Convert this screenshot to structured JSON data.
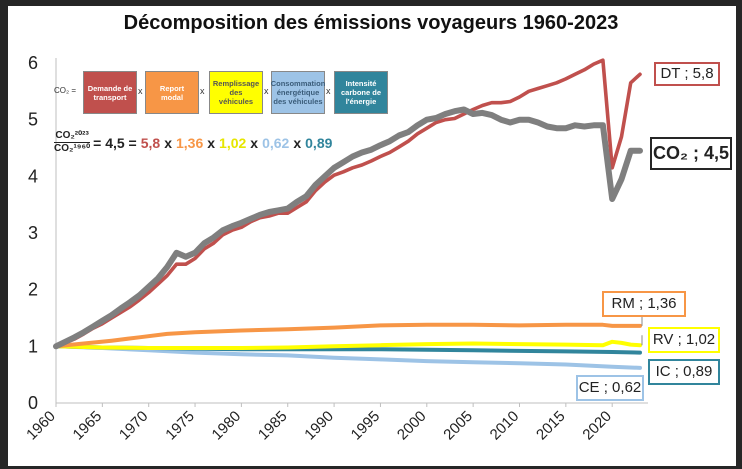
{
  "chart_data": {
    "type": "line",
    "title": "Décomposition des émissions voyageurs 1960-2023",
    "xlabel": "",
    "ylabel": "",
    "xlim": [
      1960,
      2023
    ],
    "ylim": [
      0,
      6
    ],
    "xticks": [
      1960,
      1965,
      1970,
      1975,
      1980,
      1985,
      1990,
      1995,
      2000,
      2005,
      2010,
      2015,
      2020
    ],
    "yticks": [
      0,
      1,
      2,
      3,
      4,
      5,
      6
    ],
    "grid": false,
    "series": [
      {
        "key": "DT",
        "color": "#c0504d",
        "points": [
          [
            1960,
            1.0
          ],
          [
            1961,
            1.06
          ],
          [
            1962,
            1.13
          ],
          [
            1963,
            1.22
          ],
          [
            1964,
            1.32
          ],
          [
            1965,
            1.4
          ],
          [
            1966,
            1.5
          ],
          [
            1967,
            1.6
          ],
          [
            1968,
            1.7
          ],
          [
            1969,
            1.82
          ],
          [
            1970,
            1.95
          ],
          [
            1971,
            2.1
          ],
          [
            1972,
            2.25
          ],
          [
            1973,
            2.45
          ],
          [
            1974,
            2.45
          ],
          [
            1975,
            2.55
          ],
          [
            1976,
            2.72
          ],
          [
            1977,
            2.82
          ],
          [
            1978,
            2.97
          ],
          [
            1979,
            3.05
          ],
          [
            1980,
            3.1
          ],
          [
            1981,
            3.2
          ],
          [
            1982,
            3.27
          ],
          [
            1983,
            3.3
          ],
          [
            1984,
            3.35
          ],
          [
            1985,
            3.35
          ],
          [
            1986,
            3.45
          ],
          [
            1987,
            3.55
          ],
          [
            1988,
            3.75
          ],
          [
            1989,
            3.9
          ],
          [
            1990,
            4.02
          ],
          [
            1991,
            4.08
          ],
          [
            1992,
            4.15
          ],
          [
            1993,
            4.2
          ],
          [
            1994,
            4.27
          ],
          [
            1995,
            4.35
          ],
          [
            1996,
            4.42
          ],
          [
            1997,
            4.52
          ],
          [
            1998,
            4.62
          ],
          [
            1999,
            4.75
          ],
          [
            2000,
            4.85
          ],
          [
            2001,
            4.95
          ],
          [
            2002,
            5.0
          ],
          [
            2003,
            5.02
          ],
          [
            2004,
            5.1
          ],
          [
            2005,
            5.18
          ],
          [
            2006,
            5.25
          ],
          [
            2007,
            5.3
          ],
          [
            2008,
            5.3
          ],
          [
            2009,
            5.32
          ],
          [
            2010,
            5.4
          ],
          [
            2011,
            5.5
          ],
          [
            2012,
            5.55
          ],
          [
            2013,
            5.6
          ],
          [
            2014,
            5.65
          ],
          [
            2015,
            5.72
          ],
          [
            2016,
            5.8
          ],
          [
            2017,
            5.88
          ],
          [
            2018,
            5.98
          ],
          [
            2019,
            6.05
          ],
          [
            2020,
            4.15
          ],
          [
            2021,
            4.7
          ],
          [
            2022,
            5.65
          ],
          [
            2023,
            5.8
          ]
        ]
      },
      {
        "key": "CO2",
        "color": "#7f7f7f",
        "points": [
          [
            1960,
            1.0
          ],
          [
            1961,
            1.08
          ],
          [
            1962,
            1.16
          ],
          [
            1963,
            1.25
          ],
          [
            1964,
            1.35
          ],
          [
            1965,
            1.45
          ],
          [
            1966,
            1.55
          ],
          [
            1967,
            1.67
          ],
          [
            1968,
            1.78
          ],
          [
            1969,
            1.9
          ],
          [
            1970,
            2.05
          ],
          [
            1971,
            2.2
          ],
          [
            1972,
            2.4
          ],
          [
            1973,
            2.65
          ],
          [
            1974,
            2.58
          ],
          [
            1975,
            2.65
          ],
          [
            1976,
            2.82
          ],
          [
            1977,
            2.92
          ],
          [
            1978,
            3.05
          ],
          [
            1979,
            3.12
          ],
          [
            1980,
            3.18
          ],
          [
            1981,
            3.25
          ],
          [
            1982,
            3.32
          ],
          [
            1983,
            3.37
          ],
          [
            1984,
            3.4
          ],
          [
            1985,
            3.43
          ],
          [
            1986,
            3.55
          ],
          [
            1987,
            3.65
          ],
          [
            1988,
            3.85
          ],
          [
            1989,
            4.0
          ],
          [
            1990,
            4.15
          ],
          [
            1991,
            4.25
          ],
          [
            1992,
            4.35
          ],
          [
            1993,
            4.42
          ],
          [
            1994,
            4.47
          ],
          [
            1995,
            4.55
          ],
          [
            1996,
            4.62
          ],
          [
            1997,
            4.72
          ],
          [
            1998,
            4.78
          ],
          [
            1999,
            4.9
          ],
          [
            2000,
            5.0
          ],
          [
            2001,
            5.03
          ],
          [
            2002,
            5.1
          ],
          [
            2003,
            5.15
          ],
          [
            2004,
            5.18
          ],
          [
            2005,
            5.1
          ],
          [
            2006,
            5.12
          ],
          [
            2007,
            5.08
          ],
          [
            2008,
            5.0
          ],
          [
            2009,
            4.95
          ],
          [
            2010,
            5.0
          ],
          [
            2011,
            5.0
          ],
          [
            2012,
            4.95
          ],
          [
            2013,
            4.88
          ],
          [
            2014,
            4.85
          ],
          [
            2015,
            4.85
          ],
          [
            2016,
            4.9
          ],
          [
            2017,
            4.88
          ],
          [
            2018,
            4.9
          ],
          [
            2019,
            4.9
          ],
          [
            2020,
            3.6
          ],
          [
            2021,
            3.95
          ],
          [
            2022,
            4.45
          ],
          [
            2023,
            4.45
          ]
        ]
      },
      {
        "key": "RM",
        "color": "#f79646",
        "points": [
          [
            1960,
            1.0
          ],
          [
            1963,
            1.05
          ],
          [
            1966,
            1.1
          ],
          [
            1969,
            1.16
          ],
          [
            1972,
            1.22
          ],
          [
            1975,
            1.25
          ],
          [
            1980,
            1.28
          ],
          [
            1985,
            1.3
          ],
          [
            1990,
            1.33
          ],
          [
            1995,
            1.37
          ],
          [
            2000,
            1.38
          ],
          [
            2005,
            1.38
          ],
          [
            2010,
            1.37
          ],
          [
            2015,
            1.38
          ],
          [
            2019,
            1.38
          ],
          [
            2020,
            1.36
          ],
          [
            2023,
            1.36
          ]
        ]
      },
      {
        "key": "RV",
        "color": "#ffff00",
        "points": [
          [
            1960,
            1.0
          ],
          [
            1965,
            0.98
          ],
          [
            1970,
            0.97
          ],
          [
            1975,
            0.97
          ],
          [
            1980,
            0.97
          ],
          [
            1985,
            0.98
          ],
          [
            1990,
            1.0
          ],
          [
            1995,
            1.02
          ],
          [
            2000,
            1.04
          ],
          [
            2005,
            1.05
          ],
          [
            2010,
            1.04
          ],
          [
            2015,
            1.03
          ],
          [
            2019,
            1.02
          ],
          [
            2020,
            1.08
          ],
          [
            2021,
            1.06
          ],
          [
            2022,
            1.03
          ],
          [
            2023,
            1.02
          ]
        ]
      },
      {
        "key": "CE",
        "color": "#9dc3e6",
        "points": [
          [
            1960,
            1.0
          ],
          [
            1965,
            0.97
          ],
          [
            1970,
            0.93
          ],
          [
            1975,
            0.89
          ],
          [
            1980,
            0.86
          ],
          [
            1985,
            0.84
          ],
          [
            1990,
            0.8
          ],
          [
            1995,
            0.77
          ],
          [
            2000,
            0.74
          ],
          [
            2005,
            0.72
          ],
          [
            2010,
            0.7
          ],
          [
            2015,
            0.68
          ],
          [
            2020,
            0.64
          ],
          [
            2023,
            0.62
          ]
        ]
      },
      {
        "key": "IC",
        "color": "#31859c",
        "points": [
          [
            1960,
            1.0
          ],
          [
            1965,
            0.98
          ],
          [
            1970,
            0.97
          ],
          [
            1975,
            0.96
          ],
          [
            1980,
            0.95
          ],
          [
            1985,
            0.95
          ],
          [
            1990,
            0.95
          ],
          [
            1995,
            0.95
          ],
          [
            2000,
            0.94
          ],
          [
            2005,
            0.93
          ],
          [
            2010,
            0.92
          ],
          [
            2015,
            0.91
          ],
          [
            2020,
            0.9
          ],
          [
            2023,
            0.89
          ]
        ]
      }
    ],
    "callouts": [
      {
        "key": "DT",
        "label": "DT ; 5,8",
        "border": "#c0504d"
      },
      {
        "key": "CO2",
        "label": "CO₂ ; 4,5",
        "border": "#262626"
      },
      {
        "key": "RM",
        "label": "RM ; 1,36",
        "border": "#f79646"
      },
      {
        "key": "RV",
        "label": "RV ; 1,02",
        "border": "#ffff00"
      },
      {
        "key": "IC",
        "label": "IC ; 0,89",
        "border": "#31859c"
      },
      {
        "key": "CE",
        "label": "CE ; 0,62",
        "border": "#9dc3e6"
      }
    ]
  },
  "legend": {
    "lhs": "CO₂ =",
    "times": "x",
    "factors": [
      {
        "label": "Demande de transport",
        "color": "#c0504d"
      },
      {
        "label": "Report modal",
        "color": "#f79646"
      },
      {
        "label": "Remplissage des véhicules",
        "color": "#ffff00",
        "text_color": "#555555"
      },
      {
        "label": "Consommation énergétique des véhicules",
        "color": "#9dc3e6",
        "text_color": "#3b5d7a"
      },
      {
        "label": "Intensité carbone de l'énergie",
        "color": "#31859c"
      }
    ]
  },
  "formula": {
    "numerator": "CO₂²⁰²³",
    "denominator": "CO₂¹⁹⁶⁰",
    "result": "= 4,5 =",
    "terms": [
      {
        "value": "5,8",
        "color": "#c0504d"
      },
      {
        "value": "1,36",
        "color": "#f79646"
      },
      {
        "value": "1,02",
        "color": "#e6e600"
      },
      {
        "value": "0,62",
        "color": "#9dc3e6"
      },
      {
        "value": "0,89",
        "color": "#31859c"
      }
    ],
    "times": "x"
  }
}
